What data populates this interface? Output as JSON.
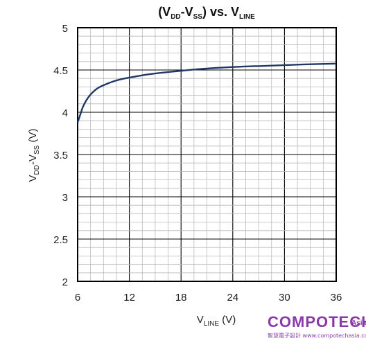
{
  "chart_data": {
    "type": "line",
    "title": {
      "a": "(V",
      "a_sub": "DD",
      "b": "-V",
      "b_sub": "SS",
      "c": ") vs. V",
      "c_sub": "LINE"
    },
    "ylabel": {
      "a": "V",
      "a_sub": "DD",
      "b": "-V",
      "b_sub": "SS",
      "c": " (V)"
    },
    "xlabel": {
      "a": "V",
      "a_sub": "LINE",
      "b": " (V)"
    },
    "xlim": [
      6,
      36
    ],
    "ylim": [
      2,
      5
    ],
    "x_ticks": [
      "6",
      "12",
      "18",
      "24",
      "30",
      "36"
    ],
    "y_ticks": [
      "5",
      "4.5",
      "4",
      "3.5",
      "3",
      "2.5",
      "2"
    ],
    "grid": true,
    "line_color": "#1f3864",
    "series": [
      {
        "x": [
          6,
          6.3,
          6.6,
          7,
          7.5,
          8,
          8.5,
          9,
          10,
          11,
          12,
          14,
          16,
          18,
          20,
          24,
          28,
          32,
          36
        ],
        "y": [
          3.88,
          3.97,
          4.06,
          4.14,
          4.21,
          4.26,
          4.295,
          4.32,
          4.36,
          4.39,
          4.41,
          4.445,
          4.47,
          4.49,
          4.51,
          4.535,
          4.55,
          4.565,
          4.575
        ]
      }
    ]
  },
  "watermark": {
    "brand": "COMPOTECH",
    "region": "Asia",
    "tagline": "智慧電子設計 www.compotechasia.com"
  }
}
